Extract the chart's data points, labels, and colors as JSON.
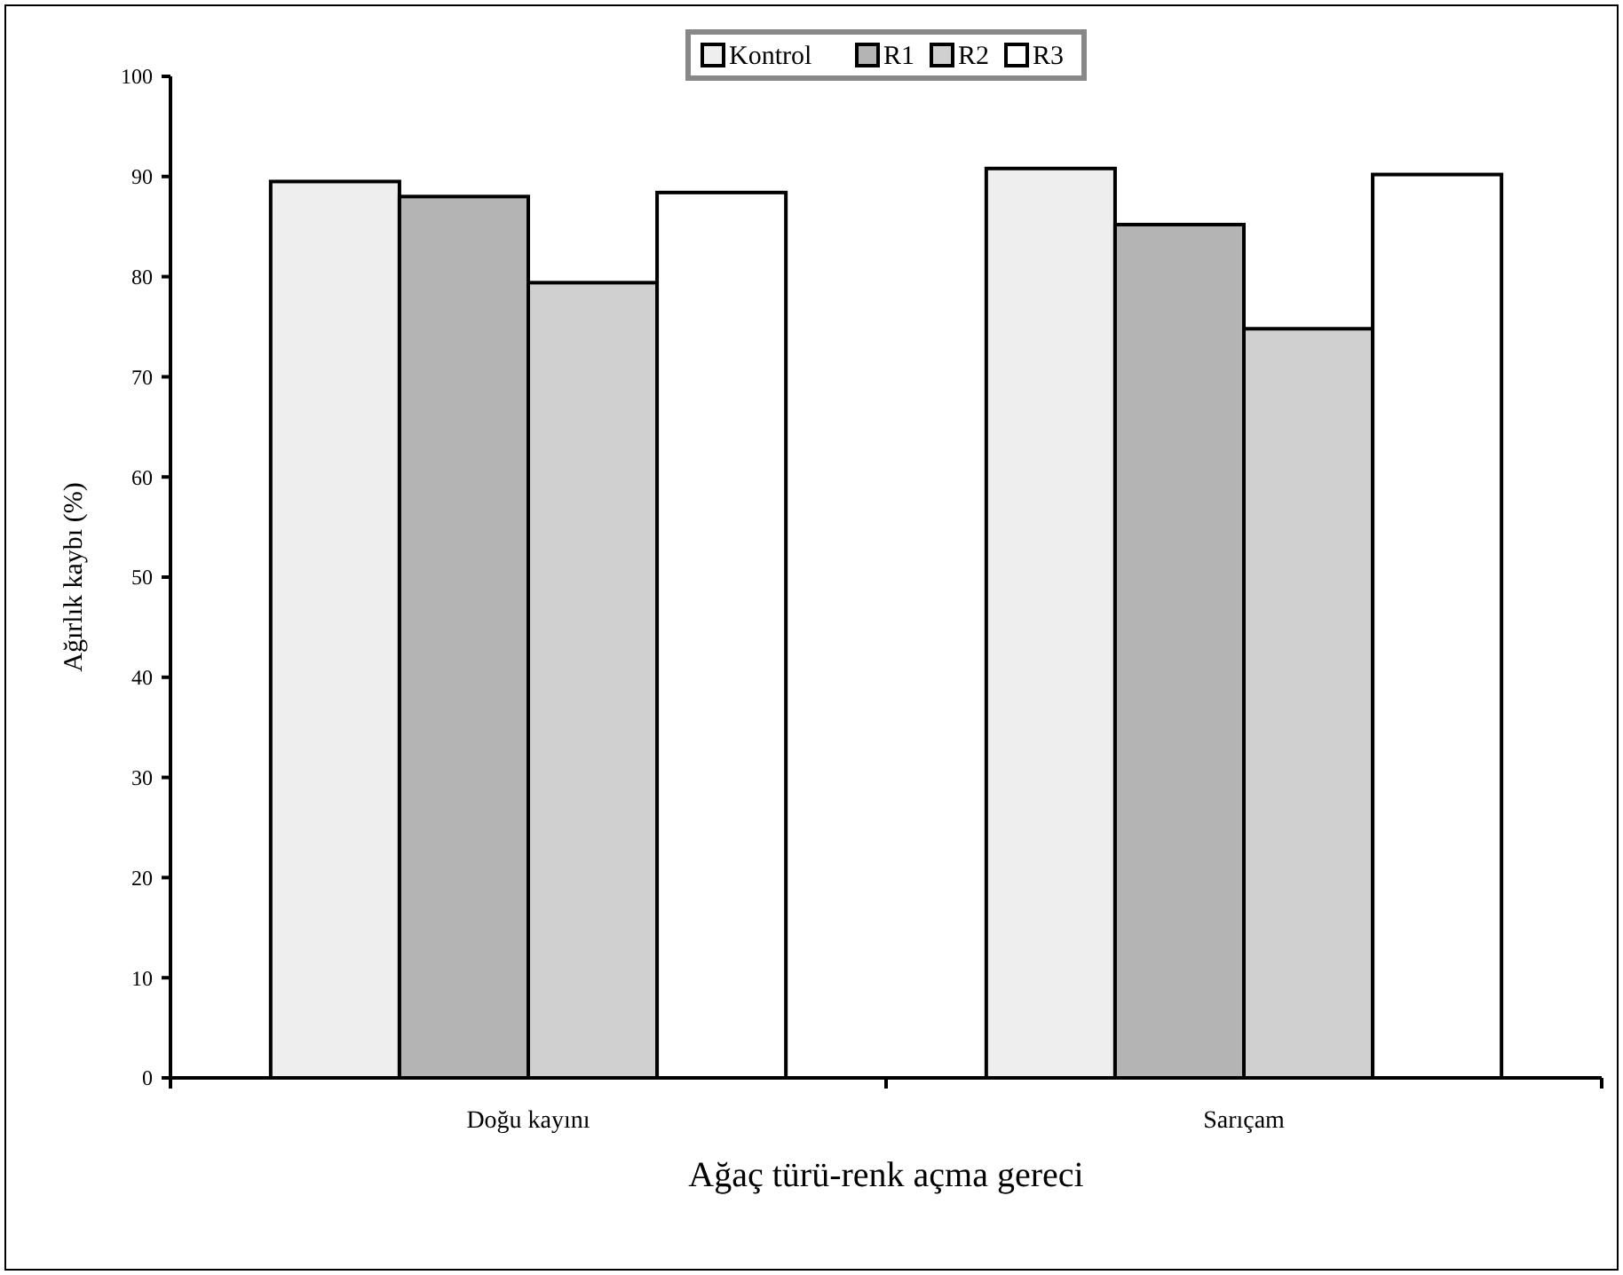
{
  "chart_data": {
    "type": "bar",
    "xlabel": "Ağaç türü-renk açma gereci",
    "ylabel": "Ağırlık kaybı (%)",
    "categories": [
      "Doğu kayını",
      "Sarıçam"
    ],
    "series": [
      {
        "name": "Kontrol",
        "color": "#eeeeee",
        "values": [
          89.5,
          90.8
        ]
      },
      {
        "name": "R1",
        "color": "#b4b4b4",
        "values": [
          88.0,
          85.2
        ]
      },
      {
        "name": "R2",
        "color": "#d0d0d0",
        "values": [
          79.4,
          74.8
        ]
      },
      {
        "name": "R3",
        "color": "#ffffff",
        "values": [
          88.4,
          90.2
        ]
      }
    ],
    "ylim": [
      0,
      100
    ],
    "yticks": [
      0,
      10,
      20,
      30,
      40,
      50,
      60,
      70,
      80,
      90,
      100
    ],
    "grid": false,
    "legend": "top"
  }
}
